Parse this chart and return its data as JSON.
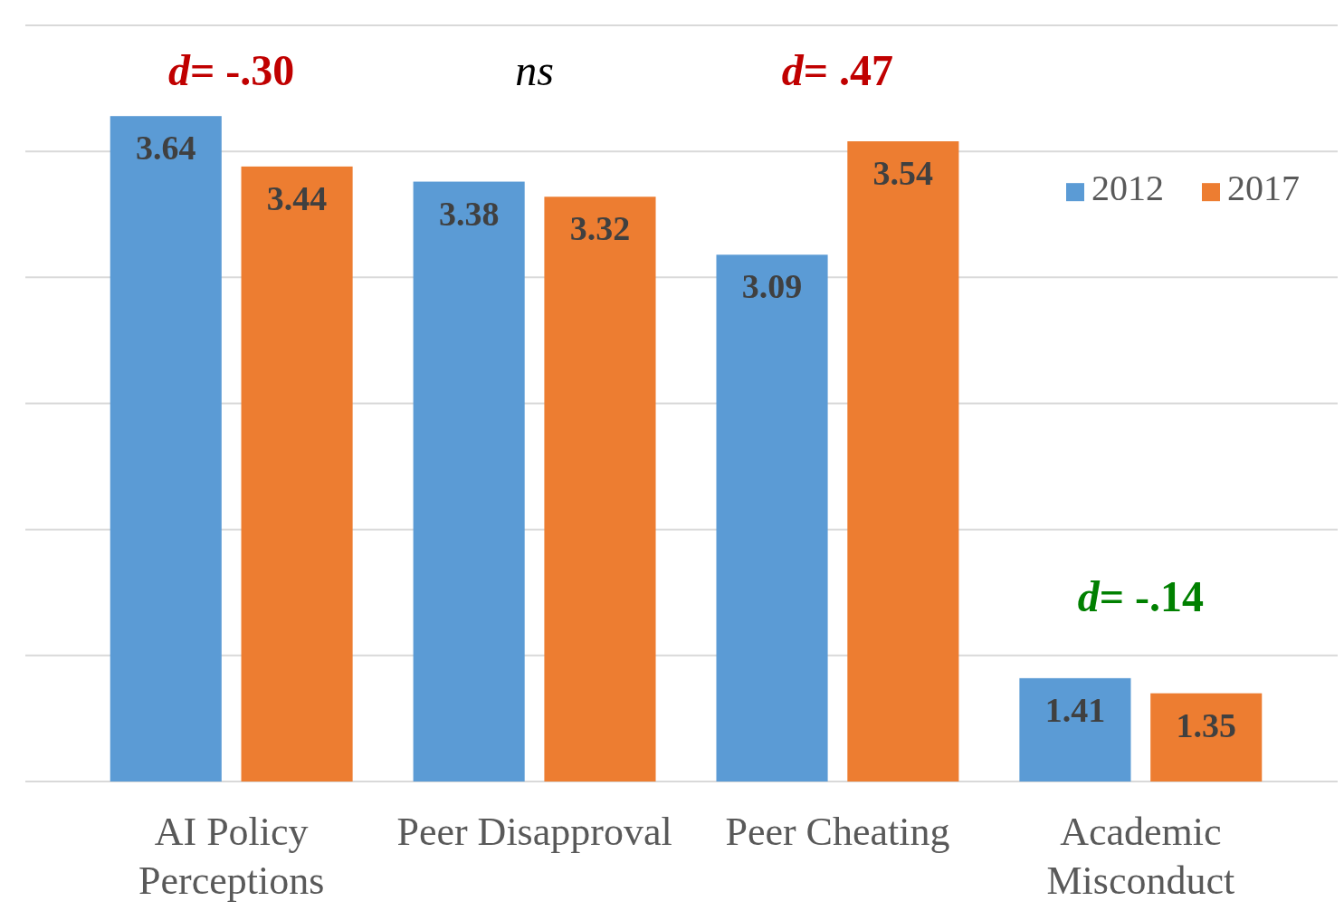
{
  "chart_data": {
    "type": "bar",
    "categories": [
      "AI Policy Perceptions",
      "Peer Disapproval",
      "Peer Cheating",
      "Academic Misconduct"
    ],
    "series": [
      {
        "name": "2012",
        "color": "#5b9bd5",
        "values": [
          3.64,
          3.38,
          3.09,
          1.41
        ]
      },
      {
        "name": "2017",
        "color": "#ed7d31",
        "values": [
          3.44,
          3.32,
          3.54,
          1.35
        ]
      }
    ],
    "ylim": [
      1,
      4
    ],
    "yticks": [
      {
        "value": 1,
        "label": null
      },
      {
        "value": 1.5,
        "label": null
      },
      {
        "value": 2,
        "label": null
      },
      {
        "value": 2.5,
        "label": null
      },
      {
        "value": 3,
        "label": null
      },
      {
        "value": 3.5,
        "label": null
      },
      {
        "value": 4,
        "label": null
      }
    ],
    "tick_labels": "x",
    "grid": "y",
    "legend": "top right",
    "data_labels": true,
    "annotations": [
      "d= -.30",
      "ns",
      "d= .47",
      "d= -.14"
    ]
  }
}
